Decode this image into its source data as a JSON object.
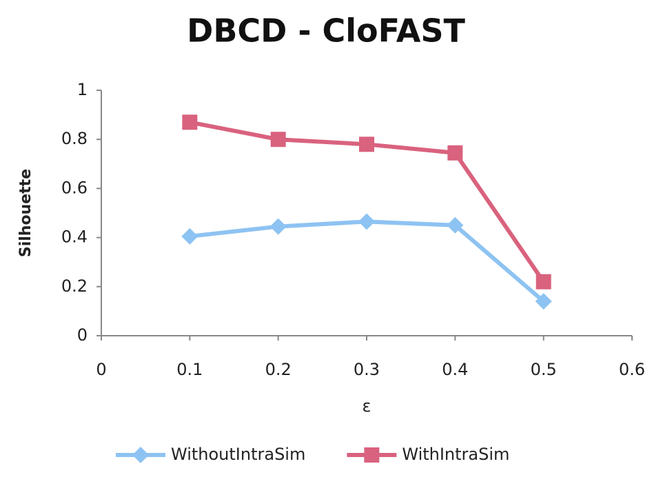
{
  "chart_data": {
    "type": "line",
    "title": "DBCD - CloFAST",
    "x_label": "ε",
    "y_label": "Silhouette",
    "x": [
      0.1,
      0.2,
      0.3,
      0.4,
      0.5
    ],
    "series": [
      {
        "name": "WithoutIntraSim",
        "color": "#8dc3f2",
        "marker": "diamond",
        "values": [
          0.405,
          0.445,
          0.465,
          0.45,
          0.14
        ]
      },
      {
        "name": "WithIntraSim",
        "color": "#d9627e",
        "marker": "square",
        "values": [
          0.87,
          0.8,
          0.78,
          0.745,
          0.22
        ]
      }
    ],
    "xlim": [
      0,
      0.6
    ],
    "xticks": [
      0,
      0.1,
      0.2,
      0.3,
      0.4,
      0.5,
      0.6
    ],
    "ylim": [
      0,
      1
    ],
    "yticks": [
      0,
      0.2,
      0.4,
      0.6,
      0.8,
      1
    ],
    "grid": false,
    "legend": "bottom"
  }
}
